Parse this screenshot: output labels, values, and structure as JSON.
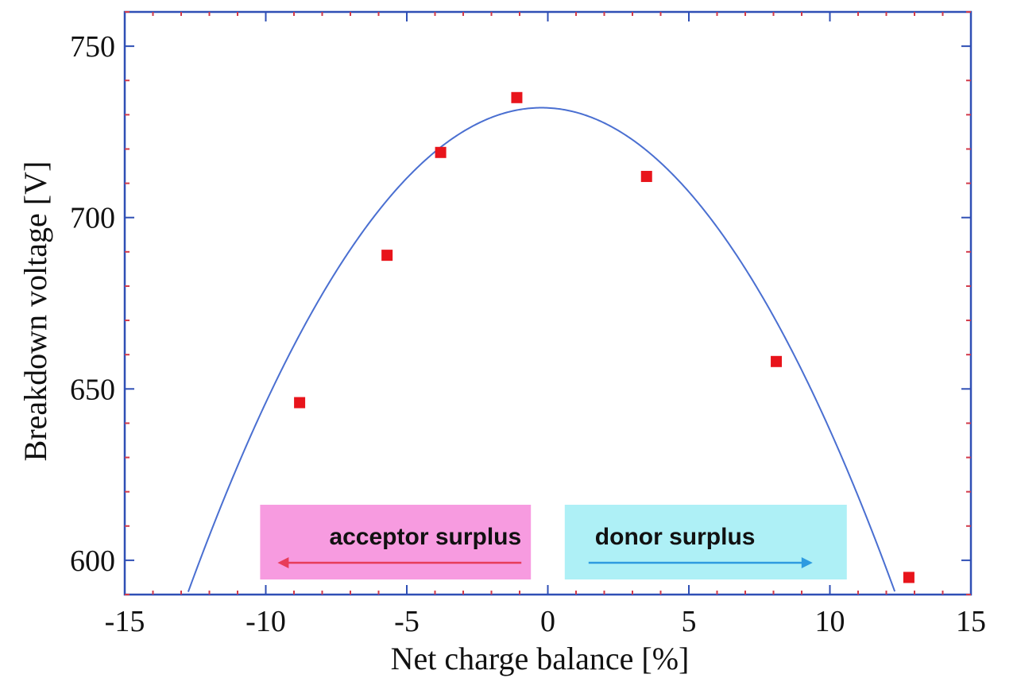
{
  "chart_data": {
    "type": "scatter",
    "xlabel": "Net charge balance [%]",
    "ylabel": "Breakdown voltage [V]",
    "xlim": [
      -15,
      15
    ],
    "ylim": [
      590,
      760
    ],
    "x_ticks": [
      -15,
      -10,
      -5,
      0,
      5,
      10,
      15
    ],
    "y_ticks": [
      600,
      650,
      700,
      750
    ],
    "grid": false,
    "series": [
      {
        "type": "scatter",
        "marker": "square",
        "color": "#e8141b",
        "points": [
          {
            "x": -8.8,
            "y": 646
          },
          {
            "x": -5.7,
            "y": 689
          },
          {
            "x": -3.8,
            "y": 719
          },
          {
            "x": -1.1,
            "y": 735
          },
          {
            "x": 3.5,
            "y": 712
          },
          {
            "x": 8.1,
            "y": 658
          },
          {
            "x": 12.8,
            "y": 595
          }
        ]
      },
      {
        "type": "line",
        "color": "#4a6fd1",
        "fit": "quadratic",
        "coefficients": {
          "a": -0.9,
          "b": -0.4,
          "c": 732
        }
      }
    ],
    "annotations": [
      {
        "text": "acceptor surplus",
        "background": "#f79be0",
        "arrow_color": "#e83c5a",
        "arrow": "left",
        "x_range": [
          -10.2,
          -0.6
        ]
      },
      {
        "text": "donor surplus",
        "background": "#aef0f6",
        "arrow_color": "#2e9be0",
        "arrow": "right",
        "x_range": [
          0.6,
          10.6
        ]
      }
    ]
  }
}
